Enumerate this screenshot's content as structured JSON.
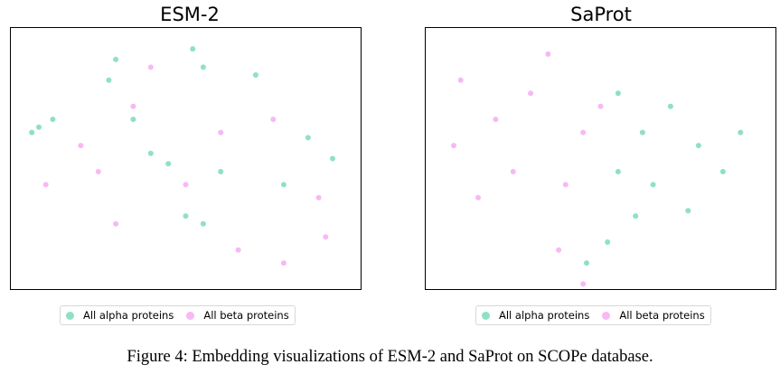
{
  "chart_data": [
    {
      "type": "scatter",
      "title": "ESM-2",
      "xlabel": "",
      "ylabel": "",
      "grid": false,
      "legend_position": "bottom-center",
      "colors": {
        "All alpha proteins": "#8fe0c6",
        "All beta proteins": "#f7b8f4"
      },
      "series": [
        {
          "name": "All alpha proteins",
          "points": [
            [
              0.08,
              0.38
            ],
            [
              0.12,
              0.35
            ],
            [
              0.06,
              0.4
            ],
            [
              0.3,
              0.12
            ],
            [
              0.28,
              0.2
            ],
            [
              0.52,
              0.08
            ],
            [
              0.55,
              0.15
            ],
            [
              0.7,
              0.18
            ],
            [
              0.4,
              0.48
            ],
            [
              0.45,
              0.52
            ],
            [
              0.5,
              0.72
            ],
            [
              0.55,
              0.75
            ],
            [
              0.78,
              0.6
            ],
            [
              0.85,
              0.42
            ],
            [
              0.92,
              0.5
            ],
            [
              0.6,
              0.55
            ],
            [
              0.35,
              0.35
            ]
          ]
        },
        {
          "name": "All beta proteins",
          "points": [
            [
              0.1,
              0.6
            ],
            [
              0.25,
              0.55
            ],
            [
              0.35,
              0.3
            ],
            [
              0.4,
              0.15
            ],
            [
              0.6,
              0.4
            ],
            [
              0.75,
              0.35
            ],
            [
              0.88,
              0.65
            ],
            [
              0.9,
              0.8
            ],
            [
              0.78,
              0.9
            ],
            [
              0.3,
              0.75
            ],
            [
              0.2,
              0.45
            ],
            [
              0.65,
              0.85
            ],
            [
              0.5,
              0.6
            ]
          ]
        }
      ]
    },
    {
      "type": "scatter",
      "title": "SaProt",
      "xlabel": "",
      "ylabel": "",
      "grid": false,
      "legend_position": "bottom-center",
      "colors": {
        "All alpha proteins": "#8fe0c6",
        "All beta proteins": "#f7b8f4"
      },
      "series": [
        {
          "name": "All alpha proteins",
          "points": [
            [
              0.55,
              0.25
            ],
            [
              0.62,
              0.4
            ],
            [
              0.7,
              0.3
            ],
            [
              0.78,
              0.45
            ],
            [
              0.85,
              0.55
            ],
            [
              0.9,
              0.4
            ],
            [
              0.65,
              0.6
            ],
            [
              0.55,
              0.55
            ],
            [
              0.75,
              0.7
            ],
            [
              0.6,
              0.72
            ],
            [
              0.52,
              0.82
            ],
            [
              0.46,
              0.9
            ]
          ]
        },
        {
          "name": "All beta proteins",
          "points": [
            [
              0.1,
              0.2
            ],
            [
              0.08,
              0.45
            ],
            [
              0.2,
              0.35
            ],
            [
              0.3,
              0.25
            ],
            [
              0.35,
              0.1
            ],
            [
              0.45,
              0.4
            ],
            [
              0.25,
              0.55
            ],
            [
              0.4,
              0.6
            ],
            [
              0.15,
              0.65
            ],
            [
              0.5,
              0.3
            ],
            [
              0.38,
              0.85
            ],
            [
              0.45,
              0.98
            ]
          ]
        }
      ]
    }
  ],
  "legend": {
    "alpha_label": "All alpha proteins",
    "beta_label": "All beta proteins",
    "alpha_color": "#8fe0c6",
    "beta_color": "#f7b8f4"
  },
  "caption": "Figure 4: Embedding visualizations of ESM-2 and SaProt on SCOPe database."
}
